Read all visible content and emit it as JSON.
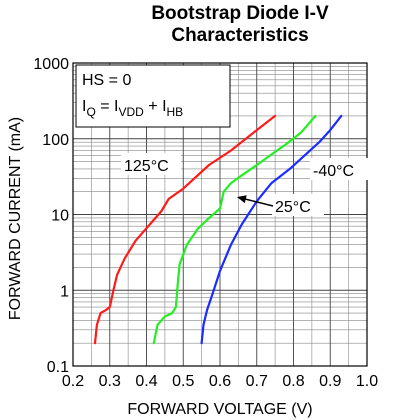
{
  "chart_data": {
    "type": "line",
    "title_lines": [
      "Bootstrap Diode I-V",
      "Characteristics"
    ],
    "xlabel": "FORWARD VOLTAGE (V)",
    "ylabel": "FORWARD CURRENT (mA)",
    "xlim": [
      0.2,
      1.0
    ],
    "ylim": [
      0.1,
      1000
    ],
    "y_scale": "log",
    "grid": true,
    "x_ticks": [
      "0.2",
      "0.3",
      "0.4",
      "0.5",
      "0.6",
      "0.7",
      "0.8",
      "0.9",
      "1.0"
    ],
    "x_tick_values": [
      0.2,
      0.3,
      0.4,
      0.5,
      0.6,
      0.7,
      0.8,
      0.9,
      1.0
    ],
    "y_ticks": [
      "0.1",
      "1",
      "10",
      "100",
      "1000"
    ],
    "y_tick_values": [
      0.1,
      1,
      10,
      100,
      1000
    ],
    "conditions": {
      "hs": "HS = 0",
      "iq_main": "I",
      "iq_sub": "Q",
      "eq": " = I",
      "vdd_sub": "VDD",
      "plus": " + I",
      "hb_sub": "HB"
    },
    "series": [
      {
        "name": "125°C",
        "color": "#ff1a1a",
        "x": [
          0.26,
          0.265,
          0.275,
          0.29,
          0.3,
          0.31,
          0.32,
          0.34,
          0.37,
          0.41,
          0.44,
          0.46,
          0.5,
          0.53,
          0.57,
          0.63,
          0.7,
          0.75
        ],
        "y": [
          0.2,
          0.35,
          0.5,
          0.55,
          0.6,
          1.0,
          1.6,
          2.6,
          4.5,
          7.5,
          11,
          16,
          22,
          30,
          45,
          70,
          130,
          200
        ]
      },
      {
        "name": "25°C",
        "color": "#22ee22",
        "x": [
          0.42,
          0.43,
          0.45,
          0.47,
          0.48,
          0.485,
          0.49,
          0.51,
          0.54,
          0.57,
          0.6,
          0.61,
          0.63,
          0.66,
          0.7,
          0.74,
          0.78,
          0.82,
          0.86
        ],
        "y": [
          0.2,
          0.35,
          0.45,
          0.5,
          0.6,
          1.2,
          2.2,
          4.0,
          6.5,
          9.0,
          12,
          20,
          26,
          33,
          45,
          62,
          85,
          120,
          200
        ]
      },
      {
        "name": "-40°C",
        "color": "#1a2cff",
        "x": [
          0.55,
          0.555,
          0.565,
          0.58,
          0.6,
          0.63,
          0.66,
          0.7,
          0.74,
          0.79,
          0.83,
          0.87,
          0.9,
          0.93
        ],
        "y": [
          0.2,
          0.35,
          0.55,
          0.9,
          1.8,
          4.0,
          7.5,
          15,
          26,
          40,
          60,
          90,
          130,
          200
        ]
      }
    ],
    "annotations": [
      "125°C",
      "-40°C",
      "25°C"
    ]
  }
}
